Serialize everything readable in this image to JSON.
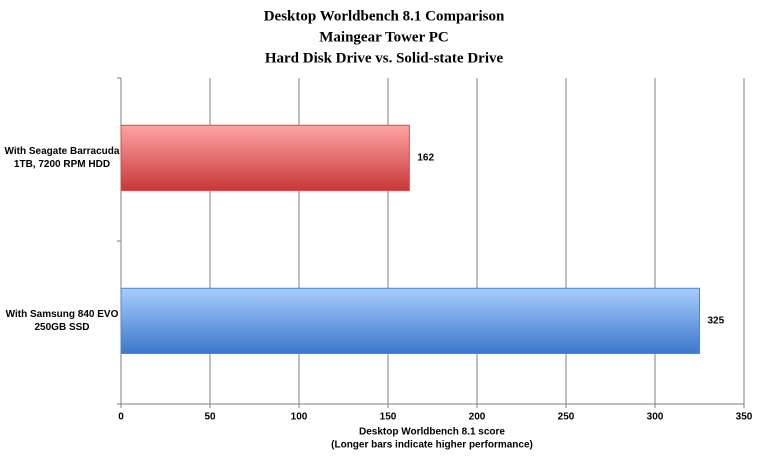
{
  "chart_data": {
    "type": "hbar",
    "title": "Desktop Worldbench 8.1 Comparison",
    "subtitle": [
      "Maingear Tower PC",
      "Hard Disk Drive vs. Solid-state Drive"
    ],
    "categories": [
      [
        "With Seagate Barracuda",
        "1TB, 7200 RPM HDD"
      ],
      [
        "With Samsung 840 EVO",
        "250GB SSD"
      ]
    ],
    "values": [
      162,
      325
    ],
    "colors": [
      "#d9484a",
      "#4a86d8"
    ],
    "xlabel": [
      "Desktop Worldbench 8.1 score",
      "(Longer bars indicate higher performance)"
    ],
    "xlim": [
      0,
      350
    ],
    "xticks": [
      0,
      50,
      100,
      150,
      200,
      250,
      300,
      350
    ],
    "grid": true
  }
}
